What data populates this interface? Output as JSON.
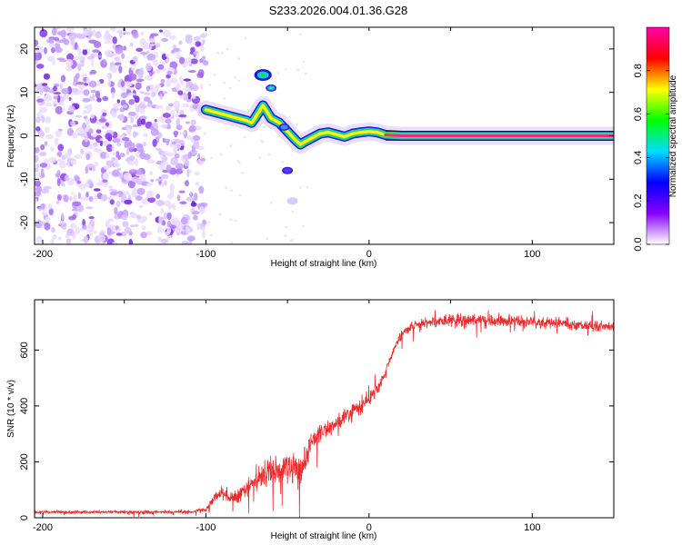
{
  "title": "S233.2026.004.01.36.G28",
  "colors": {
    "snr_line": "#ee2a2a",
    "track_core": "#ff2080",
    "track_edge": "#22dd22",
    "track_halo": "#1a1acc",
    "noise": "#8833ee"
  },
  "chart_data": [
    {
      "type": "heatmap",
      "name": "spectrogram",
      "xlabel": "Height of straight line (km)",
      "ylabel": "Frequency (Hz)",
      "xlim": [
        -205,
        150
      ],
      "ylim": [
        -25,
        25
      ],
      "xticks": [
        -200,
        -100,
        0,
        100
      ],
      "yticks": [
        -20,
        -10,
        0,
        10,
        20
      ],
      "grid": false,
      "noise_region_x": [
        -205,
        -100
      ],
      "frequency_track": {
        "x": [
          -100,
          -95,
          -90,
          -85,
          -80,
          -75,
          -72,
          -70,
          -65,
          -60,
          -55,
          -50,
          -45,
          -42,
          -40,
          -35,
          -30,
          -25,
          -20,
          -15,
          -10,
          -5,
          0,
          5,
          10,
          20,
          30,
          50,
          100,
          150
        ],
        "y": [
          6,
          5.5,
          5,
          4.5,
          4,
          3.5,
          3,
          4,
          7,
          4,
          3,
          1,
          -1,
          -2,
          -1.5,
          -0.5,
          0.5,
          0.8,
          0.3,
          -0.2,
          0.5,
          0.8,
          1,
          0.8,
          0.2,
          0,
          0,
          0,
          0,
          0
        ]
      },
      "secondary_features": {
        "x": [
          -65,
          -60,
          -52,
          -50,
          -47
        ],
        "y": [
          14,
          11,
          2,
          -8,
          -15
        ]
      },
      "colorbar": {
        "label": "Normalized spectral amplitude",
        "range": [
          0,
          1
        ],
        "ticks": [
          "0.0",
          "0.2",
          "0.4",
          "0.6",
          "0.8"
        ],
        "ticks_values": [
          0,
          0.2,
          0.4,
          0.6,
          0.8
        ],
        "colormap": [
          "#ffffff",
          "#8800ff",
          "#0000ff",
          "#00ddff",
          "#00ff00",
          "#ffff00",
          "#ff0000",
          "#ff00aa"
        ]
      }
    },
    {
      "type": "line",
      "name": "snr",
      "xlabel": "Height of straight line (km)",
      "ylabel": "SNR (10 * v/v)",
      "xlim": [
        -205,
        150
      ],
      "ylim": [
        0,
        780
      ],
      "xticks": [
        -200,
        -100,
        0,
        100
      ],
      "yticks": [
        0,
        200,
        400,
        600
      ],
      "grid": false,
      "series": [
        {
          "name": "SNR",
          "envelope_x": [
            -205,
            -110,
            -100,
            -95,
            -90,
            -85,
            -80,
            -75,
            -70,
            -65,
            -60,
            -55,
            -50,
            -45,
            -42,
            -40,
            -35,
            -30,
            -25,
            -20,
            -15,
            -10,
            -5,
            0,
            5,
            10,
            15,
            20,
            25,
            30,
            40,
            50,
            70,
            100,
            130,
            150
          ],
          "envelope_y": [
            20,
            20,
            30,
            70,
            90,
            70,
            80,
            110,
            130,
            150,
            160,
            170,
            190,
            180,
            150,
            190,
            280,
            300,
            320,
            340,
            360,
            380,
            400,
            420,
            460,
            520,
            600,
            660,
            680,
            690,
            700,
            710,
            705,
            700,
            690,
            680
          ],
          "noise_amplitude": [
            8,
            8,
            10,
            25,
            30,
            30,
            35,
            45,
            55,
            60,
            70,
            80,
            80,
            80,
            80,
            70,
            55,
            50,
            45,
            45,
            45,
            45,
            45,
            45,
            35,
            25,
            20,
            25,
            25,
            30,
            30,
            30,
            30,
            30,
            30,
            30
          ]
        }
      ]
    }
  ]
}
